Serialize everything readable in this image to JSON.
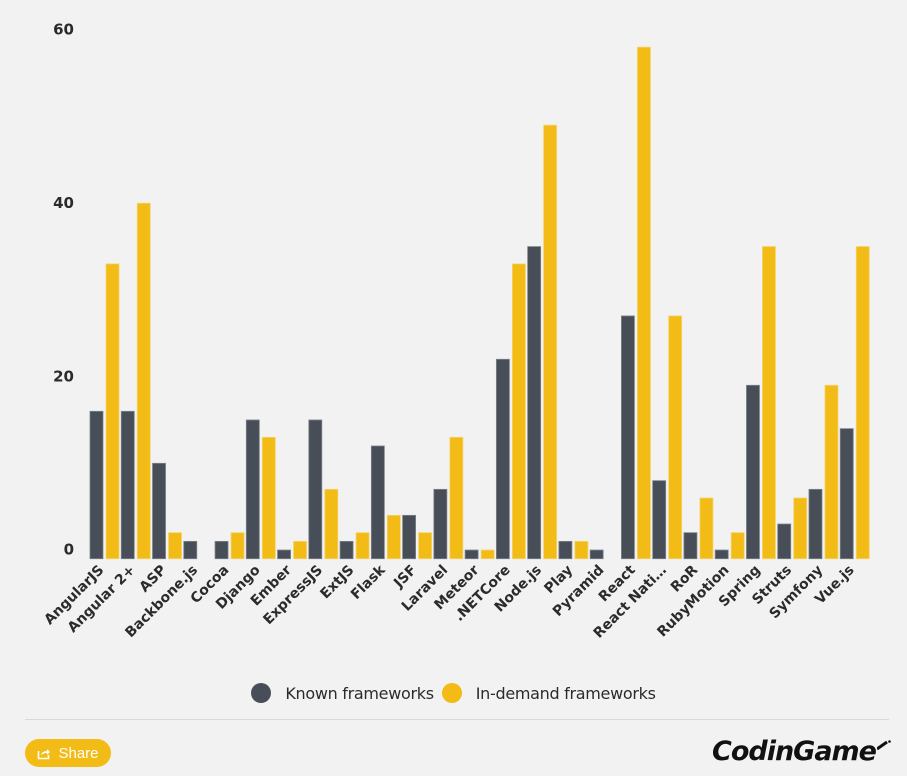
{
  "chart_data": {
    "type": "bar",
    "title": "",
    "xlabel": "",
    "ylabel": "",
    "ylim": [
      0,
      60
    ],
    "yticks": [
      0,
      20,
      40,
      60
    ],
    "grid": false,
    "legend_position": "bottom-center",
    "categories": [
      "AngularJS",
      "Angular 2+",
      "ASP",
      "Backbone.js",
      "Cocoa",
      "Django",
      "Ember",
      "ExpressJS",
      "ExtJS",
      "Flask",
      "JSF",
      "Laravel",
      "Meteor",
      ".NETCore",
      "Node.js",
      "Play",
      "Pyramid",
      "React",
      "React Nati…",
      "RoR",
      "RubyMotion",
      "Spring",
      "Struts",
      "Symfony",
      "Vue.js"
    ],
    "series": [
      {
        "name": "Known frameworks",
        "color": "#474e58",
        "values": [
          17,
          17,
          11,
          2,
          2,
          16,
          1,
          16,
          2,
          13,
          5,
          8,
          1,
          23,
          36,
          2,
          1,
          28,
          9,
          3,
          1,
          20,
          4,
          8,
          15
        ]
      },
      {
        "name": "In-demand frameworks",
        "color": "#f2bb16",
        "values": [
          34,
          41,
          3,
          0,
          3,
          14,
          2,
          8,
          3,
          5,
          3,
          14,
          1,
          34,
          50,
          2,
          0,
          59,
          28,
          7,
          3,
          36,
          7,
          20,
          36
        ]
      }
    ]
  },
  "legend": {
    "items": [
      {
        "label": "Known frameworks",
        "color": "#474e58"
      },
      {
        "label": "In-demand frameworks",
        "color": "#f2bb16"
      }
    ]
  },
  "footer": {
    "share_label": "Share",
    "share_color": "#f2bb16",
    "logo_text": "CodinGame"
  }
}
